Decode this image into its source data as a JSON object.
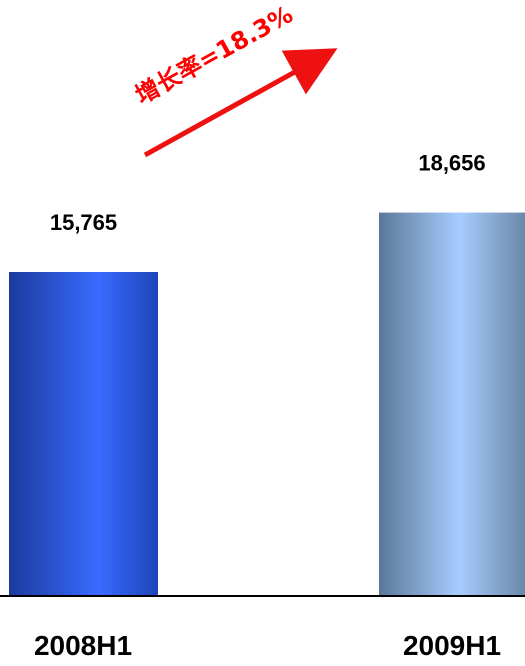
{
  "chart_data": {
    "type": "bar",
    "categories": [
      "2008H1",
      "2009H1"
    ],
    "values": [
      15765,
      18656
    ],
    "value_labels": [
      "15,765",
      "18,656"
    ],
    "growth_annotation": "增长率=18.3%",
    "colors": {
      "bar_2008_dark": "#1a3a9c",
      "bar_2008_light": "#3a6bff",
      "bar_2009_dark": "#5a7898",
      "bar_2009_light": "#a8ccff",
      "arrow": "#ee1111",
      "baseline": "#000000"
    }
  }
}
